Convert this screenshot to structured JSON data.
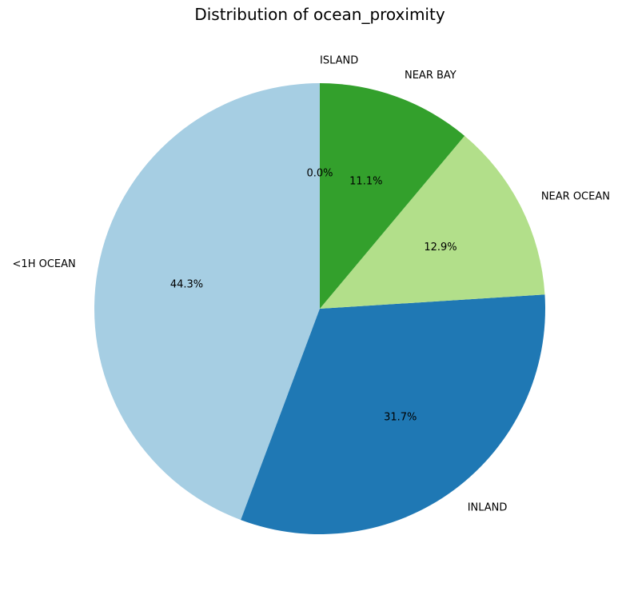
{
  "chart_data": {
    "type": "pie",
    "title": "Distribution of ocean_proximity",
    "categories": [
      "<1H OCEAN",
      "INLAND",
      "NEAR OCEAN",
      "NEAR BAY",
      "ISLAND"
    ],
    "values": [
      44.3,
      31.7,
      12.9,
      11.1,
      0.0
    ],
    "labels_pct": [
      "44.3%",
      "31.7%",
      "12.9%",
      "11.1%",
      "0.0%"
    ],
    "colors": [
      "#a6cee3",
      "#1f78b4",
      "#b2df8a",
      "#33a02c",
      "#fb9a99"
    ],
    "start_angle_deg": 90,
    "direction": "counterclockwise",
    "legend": "none"
  }
}
